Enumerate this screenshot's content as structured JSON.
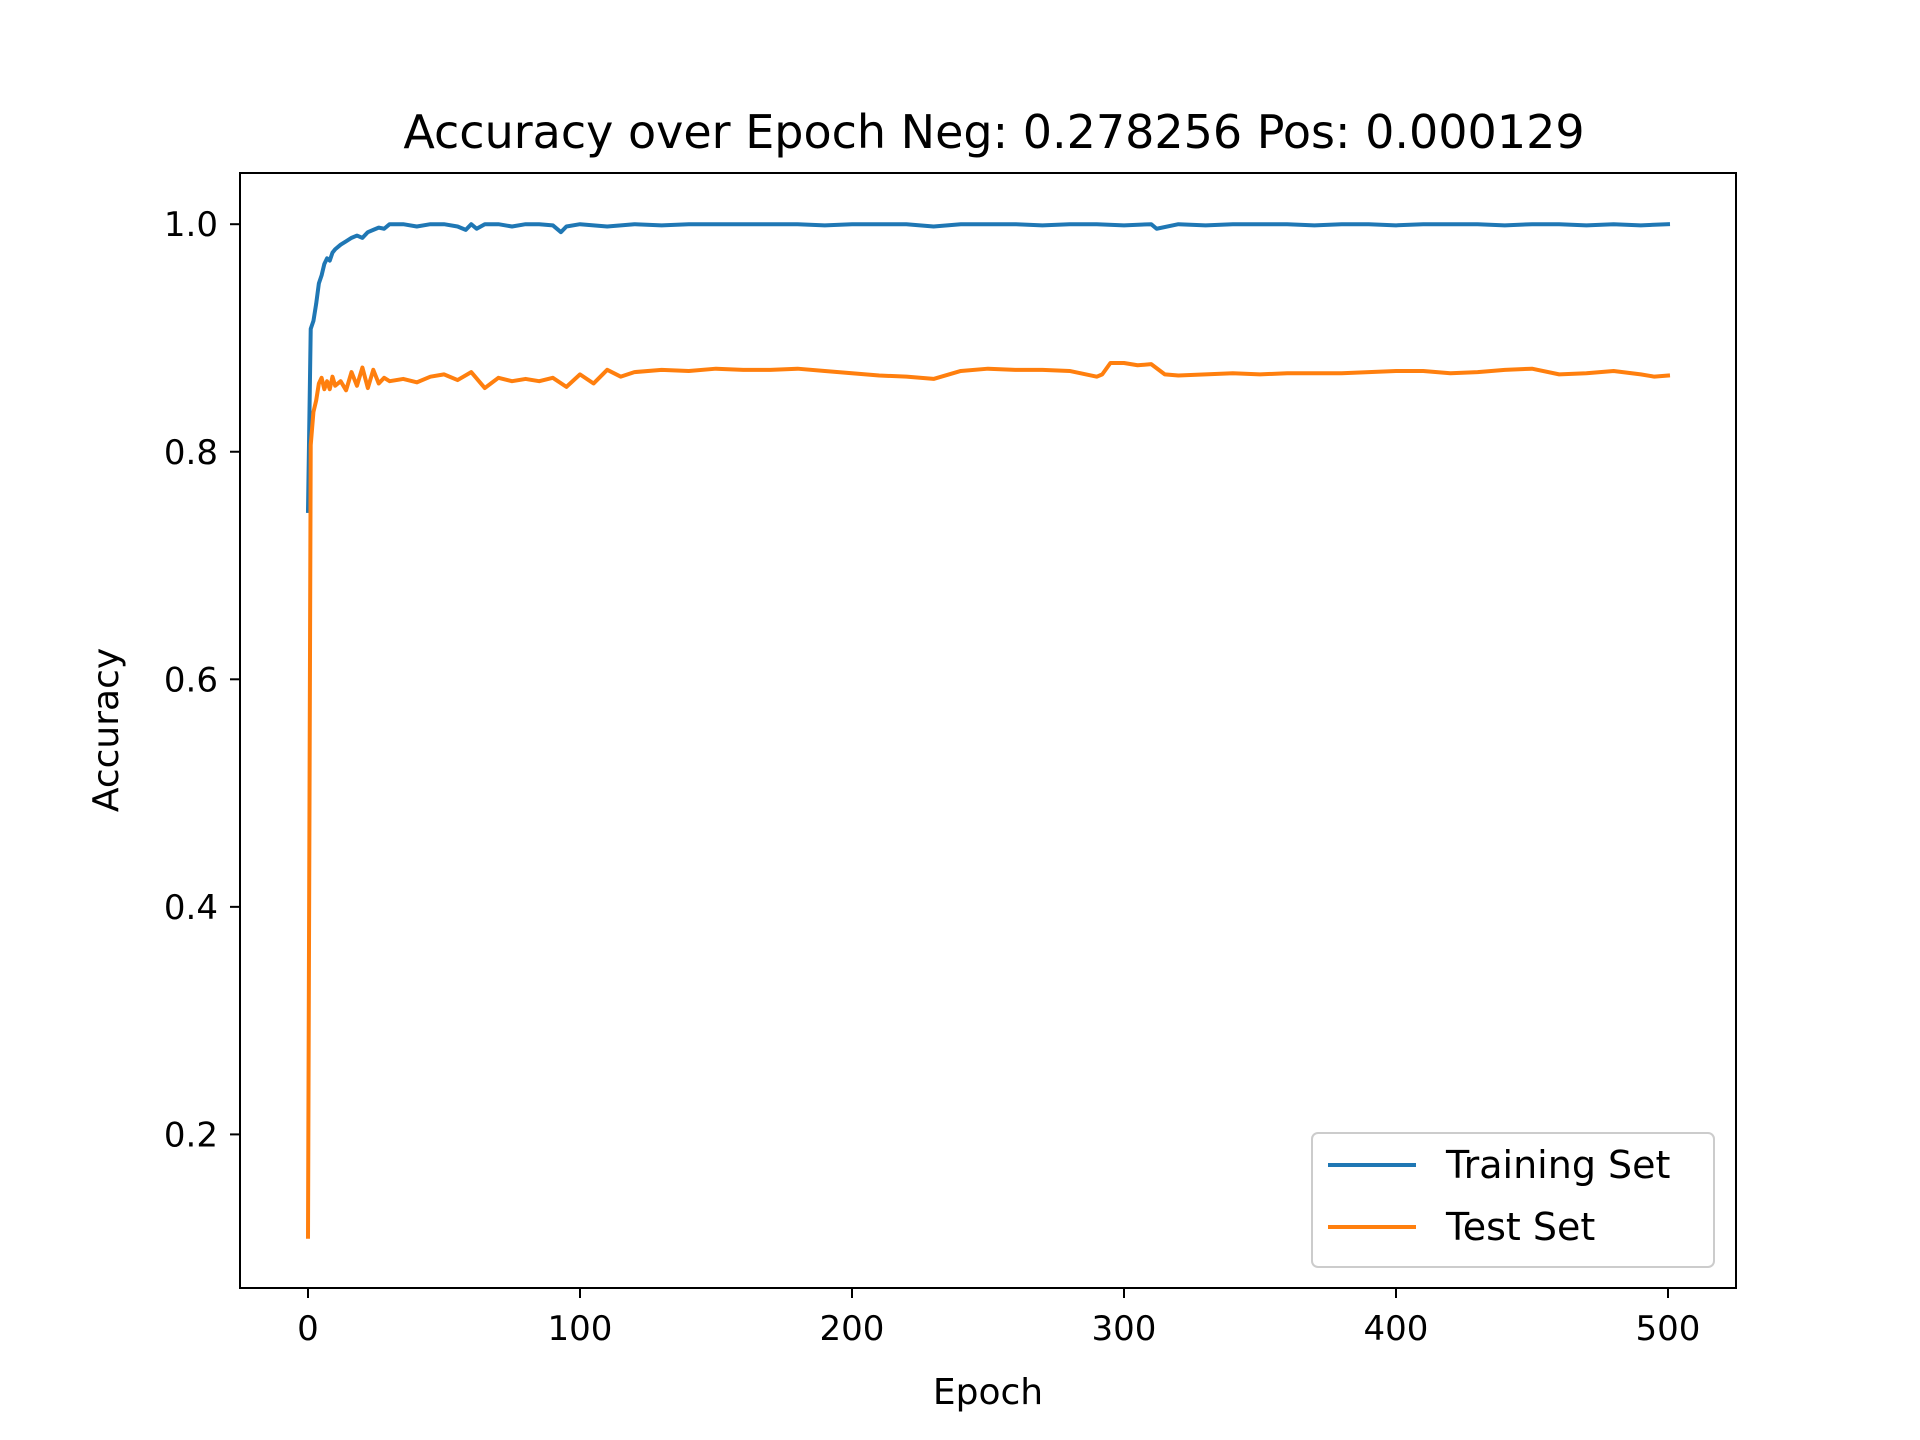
{
  "chart_data": {
    "type": "line",
    "title": "Accuracy over Epoch Neg: 0.278256 Pos: 0.000129",
    "xlabel": "Epoch",
    "ylabel": "Accuracy",
    "xlim": [
      -25,
      525
    ],
    "ylim": [
      0.065,
      1.045
    ],
    "xticks": [
      0,
      100,
      200,
      300,
      400,
      500
    ],
    "yticks": [
      0.2,
      0.4,
      0.6,
      0.8,
      1.0
    ],
    "xtick_labels": [
      "0",
      "100",
      "200",
      "300",
      "400",
      "500"
    ],
    "ytick_labels": [
      "0.2",
      "0.4",
      "0.6",
      "0.8",
      "1.0"
    ],
    "grid": false,
    "legend_position": "lower-right",
    "series": [
      {
        "name": "Training Set",
        "color": "#1f77b4",
        "x": [
          0,
          1,
          2,
          3,
          4,
          5,
          6,
          7,
          8,
          9,
          10,
          12,
          14,
          16,
          18,
          20,
          22,
          24,
          26,
          28,
          30,
          35,
          40,
          45,
          50,
          55,
          58,
          60,
          62,
          65,
          70,
          75,
          80,
          85,
          90,
          93,
          95,
          100,
          110,
          120,
          130,
          140,
          150,
          160,
          170,
          180,
          190,
          200,
          210,
          220,
          230,
          240,
          250,
          260,
          270,
          280,
          290,
          300,
          310,
          312,
          320,
          330,
          340,
          350,
          360,
          370,
          380,
          390,
          400,
          410,
          420,
          430,
          440,
          450,
          460,
          470,
          480,
          490,
          500
        ],
        "y": [
          0.748,
          0.908,
          0.915,
          0.93,
          0.948,
          0.955,
          0.965,
          0.97,
          0.968,
          0.975,
          0.978,
          0.982,
          0.985,
          0.988,
          0.99,
          0.988,
          0.993,
          0.995,
          0.997,
          0.996,
          1.0,
          1.0,
          0.998,
          1.0,
          1.0,
          0.998,
          0.995,
          1.0,
          0.996,
          1.0,
          1.0,
          0.998,
          1.0,
          1.0,
          0.999,
          0.993,
          0.998,
          1.0,
          0.998,
          1.0,
          0.999,
          1.0,
          1.0,
          1.0,
          1.0,
          1.0,
          0.999,
          1.0,
          1.0,
          1.0,
          0.998,
          1.0,
          1.0,
          1.0,
          0.999,
          1.0,
          1.0,
          0.999,
          1.0,
          0.996,
          1.0,
          0.999,
          1.0,
          1.0,
          1.0,
          0.999,
          1.0,
          1.0,
          0.999,
          1.0,
          1.0,
          1.0,
          0.999,
          1.0,
          1.0,
          0.999,
          1.0,
          0.999,
          1.0
        ]
      },
      {
        "name": "Test Set",
        "color": "#ff7f0e",
        "x": [
          0,
          1,
          2,
          3,
          4,
          5,
          6,
          7,
          8,
          9,
          10,
          12,
          14,
          16,
          18,
          20,
          22,
          24,
          26,
          28,
          30,
          35,
          40,
          45,
          50,
          55,
          60,
          65,
          70,
          75,
          80,
          85,
          90,
          95,
          100,
          105,
          110,
          115,
          120,
          130,
          140,
          150,
          160,
          170,
          180,
          190,
          200,
          210,
          220,
          230,
          240,
          250,
          260,
          270,
          280,
          290,
          292,
          295,
          300,
          305,
          310,
          315,
          320,
          330,
          340,
          350,
          360,
          370,
          380,
          390,
          400,
          410,
          420,
          430,
          440,
          450,
          460,
          470,
          480,
          490,
          495,
          500
        ],
        "y": [
          0.11,
          0.806,
          0.835,
          0.845,
          0.86,
          0.865,
          0.855,
          0.862,
          0.855,
          0.866,
          0.858,
          0.862,
          0.854,
          0.87,
          0.858,
          0.874,
          0.856,
          0.872,
          0.86,
          0.865,
          0.862,
          0.864,
          0.861,
          0.866,
          0.868,
          0.863,
          0.87,
          0.856,
          0.865,
          0.862,
          0.864,
          0.862,
          0.865,
          0.857,
          0.868,
          0.86,
          0.872,
          0.866,
          0.87,
          0.872,
          0.871,
          0.873,
          0.872,
          0.872,
          0.873,
          0.871,
          0.869,
          0.867,
          0.866,
          0.864,
          0.871,
          0.873,
          0.872,
          0.872,
          0.871,
          0.866,
          0.868,
          0.878,
          0.878,
          0.876,
          0.877,
          0.868,
          0.867,
          0.868,
          0.869,
          0.868,
          0.869,
          0.869,
          0.869,
          0.87,
          0.871,
          0.871,
          0.869,
          0.87,
          0.872,
          0.873,
          0.868,
          0.869,
          0.871,
          0.868,
          0.866,
          0.867
        ]
      }
    ]
  }
}
